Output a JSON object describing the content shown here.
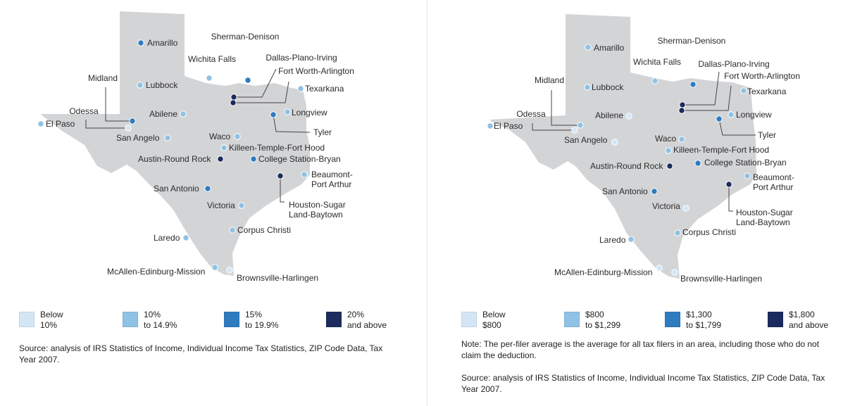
{
  "colors": {
    "state_fill": "#d3d4d6",
    "leader_line": "#444444",
    "tier": [
      "#d4e6f5",
      "#8fc2e4",
      "#2f7bc0",
      "#1c2b5e"
    ]
  },
  "panels": [
    {
      "legend": [
        {
          "lines": [
            "Below",
            "10%"
          ],
          "tier": 0
        },
        {
          "lines": [
            "10%",
            "to 14.9%"
          ],
          "tier": 1
        },
        {
          "lines": [
            "15%",
            "to 19.9%"
          ],
          "tier": 2
        },
        {
          "lines": [
            "20%",
            "and above"
          ],
          "tier": 3
        }
      ],
      "note": "",
      "source": "Source: analysis of IRS Statistics of Income, Individual Income Tax Statistics, ZIP Code Data, Tax Year 2007."
    },
    {
      "legend": [
        {
          "lines": [
            "Below",
            "$800"
          ],
          "tier": 0
        },
        {
          "lines": [
            "$800",
            "to $1,299"
          ],
          "tier": 1
        },
        {
          "lines": [
            "$1,300",
            "to $1,799"
          ],
          "tier": 2
        },
        {
          "lines": [
            "$1,800",
            "and above"
          ],
          "tier": 3
        }
      ],
      "note": "Note: The per-filer average is the average for all tax filers in an area, including those who do not claim the deduction.",
      "source": "Source: analysis of IRS Statistics of Income, Individual Income Tax Statistics, ZIP Code Data, Tax Year 2007."
    }
  ],
  "cities": [
    {
      "name": "Amarillo",
      "lines": [
        "Amarillo"
      ],
      "tiers": [
        2,
        1
      ]
    },
    {
      "name": "Sherman-Denison",
      "lines": [
        "Sherman-Denison"
      ],
      "tiers": [
        2,
        2
      ]
    },
    {
      "name": "Wichita Falls",
      "lines": [
        "Wichita Falls"
      ],
      "tiers": [
        1,
        1
      ]
    },
    {
      "name": "Dallas-Plano-Irving",
      "lines": [
        "Dallas-Plano-Irving"
      ],
      "tiers": [
        3,
        3
      ]
    },
    {
      "name": "Fort Worth-Arlington",
      "lines": [
        "Fort Worth-Arlington"
      ],
      "tiers": [
        3,
        3
      ]
    },
    {
      "name": "Midland",
      "lines": [
        "Midland"
      ],
      "tiers": [
        2,
        1
      ]
    },
    {
      "name": "Lubbock",
      "lines": [
        "Lubbock"
      ],
      "tiers": [
        1,
        1
      ]
    },
    {
      "name": "Texarkana",
      "lines": [
        "Texarkana"
      ],
      "tiers": [
        1,
        1
      ]
    },
    {
      "name": "Odessa",
      "lines": [
        "Odessa"
      ],
      "tiers": [
        0,
        0
      ]
    },
    {
      "name": "Abilene",
      "lines": [
        "Abilene"
      ],
      "tiers": [
        1,
        0
      ]
    },
    {
      "name": "Longview",
      "lines": [
        "Longview"
      ],
      "tiers": [
        1,
        1
      ]
    },
    {
      "name": "El Paso",
      "lines": [
        "El Paso"
      ],
      "tiers": [
        1,
        1
      ]
    },
    {
      "name": "Tyler",
      "lines": [
        "Tyler"
      ],
      "tiers": [
        2,
        2
      ]
    },
    {
      "name": "San Angelo",
      "lines": [
        "San Angelo"
      ],
      "tiers": [
        1,
        0
      ]
    },
    {
      "name": "Waco",
      "lines": [
        "Waco"
      ],
      "tiers": [
        1,
        1
      ]
    },
    {
      "name": "Killeen-Temple-Fort Hood",
      "lines": [
        "Killeen-Temple-Fort Hood"
      ],
      "tiers": [
        1,
        1
      ]
    },
    {
      "name": "Austin-Round Rock",
      "lines": [
        "Austin-Round Rock"
      ],
      "tiers": [
        3,
        3
      ]
    },
    {
      "name": "College Station-Bryan",
      "lines": [
        "College Station-Bryan"
      ],
      "tiers": [
        2,
        2
      ]
    },
    {
      "name": "Beaumont-Port Arthur",
      "lines": [
        "Beaumont-",
        "Port Arthur"
      ],
      "tiers": [
        1,
        1
      ]
    },
    {
      "name": "San Antonio",
      "lines": [
        "San Antonio"
      ],
      "tiers": [
        2,
        2
      ]
    },
    {
      "name": "Houston-Sugar Land-Baytown",
      "lines": [
        "Houston-Sugar",
        "Land-Baytown"
      ],
      "tiers": [
        3,
        3
      ]
    },
    {
      "name": "Victoria",
      "lines": [
        "Victoria"
      ],
      "tiers": [
        1,
        0
      ]
    },
    {
      "name": "Corpus Christi",
      "lines": [
        "Corpus Christi"
      ],
      "tiers": [
        1,
        1
      ]
    },
    {
      "name": "Laredo",
      "lines": [
        "Laredo"
      ],
      "tiers": [
        1,
        1
      ]
    },
    {
      "name": "McAllen-Edinburg-Mission",
      "lines": [
        "McAllen-Edinburg-Mission"
      ],
      "tiers": [
        1,
        0
      ]
    },
    {
      "name": "Brownsville-Harlingen",
      "lines": [
        "Brownsville-Harlingen"
      ],
      "tiers": [
        0,
        0
      ]
    }
  ]
}
